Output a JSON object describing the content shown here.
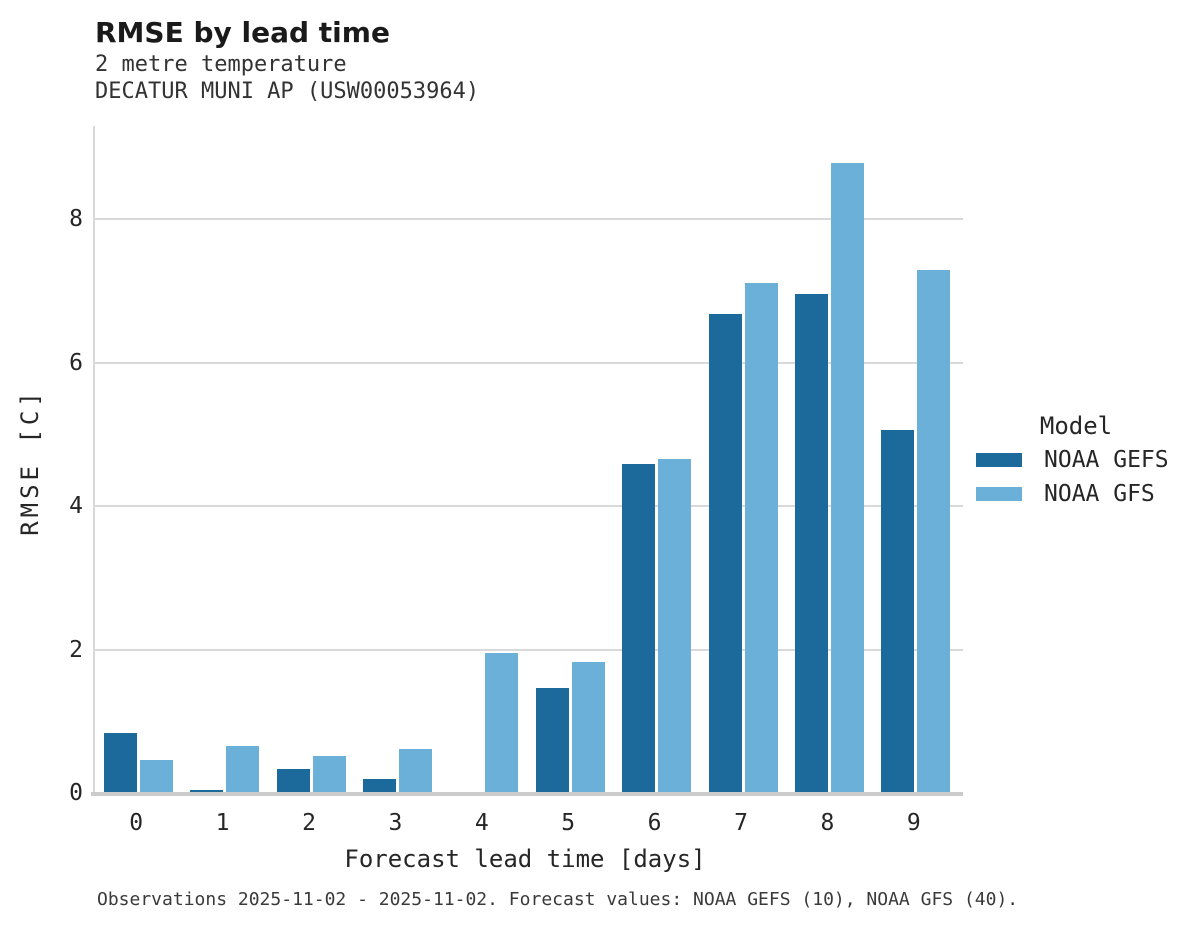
{
  "chart_data": {
    "type": "bar",
    "title": "RMSE by lead time",
    "subtitle": [
      "2 metre temperature",
      "DECATUR MUNI AP (USW00053964)"
    ],
    "xlabel": "Forecast lead time [days]",
    "ylabel": "RMSE [C]",
    "categories": [
      "0",
      "1",
      "2",
      "3",
      "4",
      "5",
      "6",
      "7",
      "8",
      "9"
    ],
    "series": [
      {
        "name": "NOAA GEFS",
        "color": "#1b6a9b",
        "values": [
          0.84,
          0.04,
          0.34,
          0.2,
          0.0,
          1.47,
          4.59,
          6.68,
          6.96,
          5.06
        ]
      },
      {
        "name": "NOAA GFS",
        "color": "#6bb0d8",
        "values": [
          0.46,
          0.65,
          0.51,
          0.61,
          1.95,
          1.82,
          4.66,
          7.11,
          8.79,
          7.29
        ]
      }
    ],
    "yticks": [
      0,
      2,
      4,
      6,
      8
    ],
    "ylim": [
      0,
      9.3
    ],
    "grid": true,
    "legend_title": "Model",
    "legend_position": "right",
    "caption": "Observations 2025-11-02 - 2025-11-02. Forecast values: NOAA GEFS (10), NOAA GFS (40)."
  }
}
